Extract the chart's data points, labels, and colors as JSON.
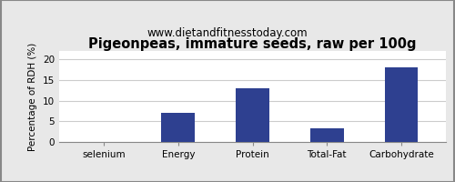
{
  "title": "Pigeonpeas, immature seeds, raw per 100g",
  "subtitle": "www.dietandfitnesstoday.com",
  "categories": [
    "selenium",
    "Energy",
    "Protein",
    "Total-Fat",
    "Carbohydrate"
  ],
  "values": [
    0,
    7,
    13,
    3.3,
    18
  ],
  "bar_color": "#2e4090",
  "ylabel": "Percentage of RDH (%)",
  "ylim": [
    0,
    22
  ],
  "yticks": [
    0,
    5,
    10,
    15,
    20
  ],
  "background_color": "#e8e8e8",
  "plot_background": "#ffffff",
  "title_fontsize": 10.5,
  "subtitle_fontsize": 8.5,
  "ylabel_fontsize": 7.5,
  "tick_fontsize": 7.5,
  "grid_color": "#cccccc"
}
